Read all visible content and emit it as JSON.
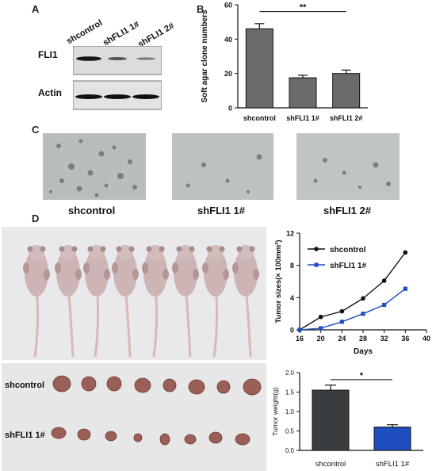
{
  "panels": {
    "a": "A",
    "b": "B",
    "c": "C",
    "d": "D"
  },
  "blot": {
    "lanes": [
      "shcontrol",
      "shFLI1 1#",
      "shFLI1 2#"
    ],
    "rows": [
      "FLI1",
      "Actin"
    ]
  },
  "colonies": {
    "labels": [
      "shcontrol",
      "shFLI1 1#",
      "shFLI1 2#"
    ]
  },
  "mice": {
    "tumor_rows": [
      "shcontrol",
      "shFLI1 1#"
    ]
  },
  "colors": {
    "bar_fill": "#6b6b6b",
    "control_series": "#111111",
    "knockdown_series": "#1f4fbf",
    "weight_control": "#3a3d3f",
    "weight_knockdown": "#1f4fbf"
  },
  "chart_data": [
    {
      "type": "bar",
      "panel": "B",
      "categories": [
        "shcontrol",
        "shFLI1 1#",
        "shFLI1 2#"
      ],
      "values": [
        46,
        17.5,
        20
      ],
      "errors": [
        3,
        1.5,
        2
      ],
      "ylabel": "Soft agar clone numbers",
      "ylim": [
        0,
        60
      ],
      "yticks": [
        "0",
        "20",
        "40",
        "60"
      ],
      "significance": "**"
    },
    {
      "type": "line",
      "panel": "D",
      "x": [
        16,
        20,
        24,
        28,
        32,
        36
      ],
      "series": [
        {
          "name": "shcontrol",
          "values": [
            0,
            1.6,
            2.3,
            3.9,
            6.1,
            9.6
          ]
        },
        {
          "name": "shFLI1 1#",
          "values": [
            0,
            0.2,
            1.0,
            2.0,
            3.1,
            5.1
          ]
        }
      ],
      "xlabel": "Days",
      "ylabel": "Tumor sizes(× 100mm²)",
      "xlim": [
        16,
        40
      ],
      "ylim": [
        0,
        12
      ],
      "xticks": [
        "16",
        "20",
        "24",
        "28",
        "32",
        "36",
        "40"
      ],
      "yticks": [
        "0",
        "4",
        "8",
        "12"
      ],
      "legend": "top-left"
    },
    {
      "type": "bar",
      "panel": "D",
      "categories": [
        "shcontrol",
        "shFLI1 1#"
      ],
      "values": [
        1.55,
        0.6
      ],
      "errors": [
        0.13,
        0.06
      ],
      "ylabel": "Tumor weight(g)",
      "ylim": [
        0,
        2.0
      ],
      "yticks": [
        "0.0",
        "0.5",
        "1.0",
        "1.5",
        "2.0"
      ],
      "significance": "*"
    }
  ]
}
